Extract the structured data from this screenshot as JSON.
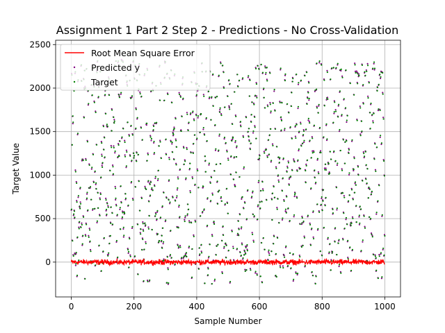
{
  "chart_data": {
    "type": "scatter",
    "title": "Assignment 1 Part 2 Step 2 - Predictions - No Cross-Validation",
    "xlabel": "Sample Number",
    "ylabel": "Target Value",
    "xlim": [
      -50,
      1050
    ],
    "ylim": [
      -400,
      2550
    ],
    "x_ticks": [
      0,
      200,
      400,
      600,
      800,
      1000
    ],
    "y_ticks": [
      0,
      500,
      1000,
      1500,
      2000,
      2500
    ],
    "grid": true,
    "legend_position": "top-left",
    "n_samples": 1000,
    "target_range": [
      -250,
      2420
    ],
    "residual_spread": 30,
    "series": [
      {
        "name": "Root Mean Square Error",
        "kind": "line",
        "color": "#ff0000"
      },
      {
        "name": "Predicted y",
        "kind": "points",
        "color": "#800080"
      },
      {
        "name": "Target",
        "kind": "points",
        "color": "#008000"
      }
    ]
  }
}
